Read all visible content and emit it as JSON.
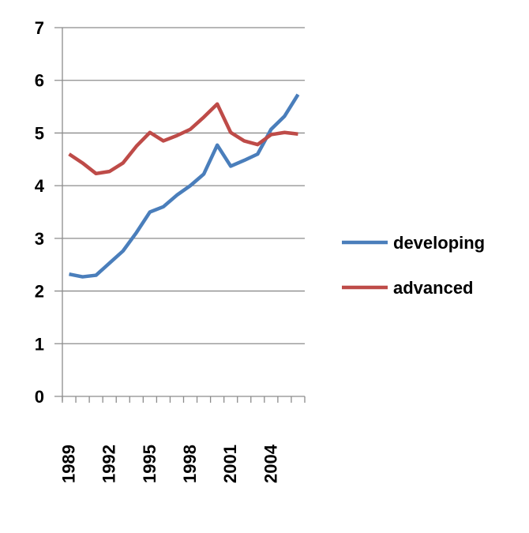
{
  "chart_data": {
    "type": "line",
    "title": "",
    "xlabel": "",
    "ylabel": "",
    "ylim": [
      0,
      7
    ],
    "yticks": [
      "0",
      "1",
      "2",
      "3",
      "4",
      "5",
      "6",
      "7"
    ],
    "x": [
      1989,
      1990,
      1991,
      1992,
      1993,
      1994,
      1995,
      1996,
      1997,
      1998,
      1999,
      2000,
      2001,
      2002,
      2003,
      2004,
      2005,
      2006
    ],
    "xtick_labels": [
      "1989",
      "1992",
      "1995",
      "1998",
      "2001",
      "2004"
    ],
    "grid": true,
    "legend_position": "right",
    "series": [
      {
        "name": "developing",
        "color": "#4a7ebb",
        "values": [
          2.32,
          2.27,
          2.3,
          2.53,
          2.76,
          3.11,
          3.5,
          3.6,
          3.82,
          4.0,
          4.22,
          4.77,
          4.37,
          4.48,
          4.6,
          5.07,
          5.32,
          5.73
        ]
      },
      {
        "name": "advanced",
        "color": "#be4b48",
        "values": [
          4.6,
          4.43,
          4.23,
          4.27,
          4.43,
          4.75,
          5.01,
          4.85,
          4.95,
          5.07,
          5.3,
          5.55,
          5.01,
          4.85,
          4.78,
          4.97,
          5.01,
          4.98
        ]
      }
    ]
  }
}
